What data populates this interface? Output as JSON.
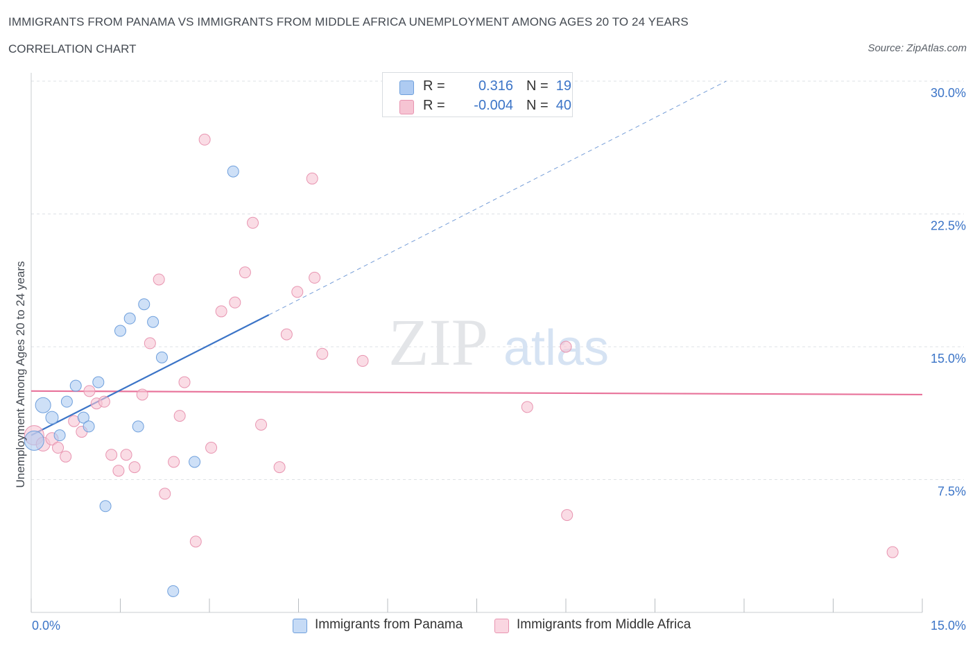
{
  "title": "IMMIGRANTS FROM PANAMA VS IMMIGRANTS FROM MIDDLE AFRICA UNEMPLOYMENT AMONG AGES 20 TO 24 YEARS",
  "subtitle": "CORRELATION CHART",
  "source": "Source: ZipAtlas.com",
  "watermark": {
    "zip": "ZIP",
    "atlas": "atlas"
  },
  "legend": {
    "r_label": "R =",
    "n_label": "N =",
    "rows": [
      {
        "r": "0.316",
        "n": "19"
      },
      {
        "r": "-0.004",
        "n": "40"
      }
    ]
  },
  "colors": {
    "panama_fill": "#aecbf2",
    "panama_stroke": "#6e9fdc",
    "panama_line": "#3b74c7",
    "africa_fill": "#f6c4d3",
    "africa_stroke": "#e894b0",
    "africa_line": "#e8729a",
    "axis_label": "#3b74c7",
    "grid": "#dde1e5"
  },
  "chart_data": {
    "type": "scatter",
    "title": "IMMIGRANTS FROM PANAMA VS IMMIGRANTS FROM MIDDLE AFRICA UNEMPLOYMENT AMONG AGES 20 TO 24 YEARS",
    "xlabel": "",
    "ylabel": "Unemployment Among Ages 20 to 24 years",
    "xlim": [
      0,
      15
    ],
    "ylim": [
      0,
      30
    ],
    "x_tick_labels": [
      "0.0%",
      "15.0%"
    ],
    "y_ticks": [
      7.5,
      15.0,
      22.5,
      30.0
    ],
    "y_tick_labels": [
      "7.5%",
      "15.0%",
      "22.5%",
      "30.0%"
    ],
    "grid": true,
    "legend_position": "bottom",
    "series": [
      {
        "name": "Immigrants from Panama",
        "R": 0.316,
        "N": 19,
        "trend": {
          "x0": 0.0,
          "y0": 10.0,
          "x1": 4.0,
          "y1": 16.8,
          "dashed_to_x": 11.7,
          "dashed_to_y": 30.0
        },
        "points": [
          {
            "x": 0.05,
            "y": 9.7,
            "s": 14
          },
          {
            "x": 0.2,
            "y": 11.7,
            "s": 11
          },
          {
            "x": 0.35,
            "y": 11.0,
            "s": 9
          },
          {
            "x": 0.48,
            "y": 10.0,
            "s": 8
          },
          {
            "x": 0.6,
            "y": 11.9,
            "s": 8
          },
          {
            "x": 0.75,
            "y": 12.8,
            "s": 8
          },
          {
            "x": 0.88,
            "y": 11.0,
            "s": 8
          },
          {
            "x": 0.97,
            "y": 10.5,
            "s": 8
          },
          {
            "x": 1.13,
            "y": 13.0,
            "s": 8
          },
          {
            "x": 1.25,
            "y": 6.0,
            "s": 8
          },
          {
            "x": 1.5,
            "y": 15.9,
            "s": 8
          },
          {
            "x": 1.66,
            "y": 16.6,
            "s": 8
          },
          {
            "x": 1.8,
            "y": 10.5,
            "s": 8
          },
          {
            "x": 1.9,
            "y": 17.4,
            "s": 8
          },
          {
            "x": 2.05,
            "y": 16.4,
            "s": 8
          },
          {
            "x": 2.2,
            "y": 14.4,
            "s": 8
          },
          {
            "x": 2.39,
            "y": 1.2,
            "s": 8
          },
          {
            "x": 2.75,
            "y": 8.5,
            "s": 8
          },
          {
            "x": 3.4,
            "y": 24.9,
            "s": 8
          }
        ]
      },
      {
        "name": "Immigrants from Middle Africa",
        "R": -0.004,
        "N": 40,
        "trend": {
          "x0": 0.0,
          "y0": 12.5,
          "x1": 15.0,
          "y1": 12.3
        },
        "points": [
          {
            "x": 0.05,
            "y": 10.0,
            "s": 14
          },
          {
            "x": 0.2,
            "y": 9.5,
            "s": 10
          },
          {
            "x": 0.35,
            "y": 9.8,
            "s": 9
          },
          {
            "x": 0.45,
            "y": 9.3,
            "s": 8
          },
          {
            "x": 0.58,
            "y": 8.8,
            "s": 8
          },
          {
            "x": 0.72,
            "y": 10.8,
            "s": 8
          },
          {
            "x": 0.85,
            "y": 10.2,
            "s": 8
          },
          {
            "x": 0.98,
            "y": 12.5,
            "s": 8
          },
          {
            "x": 1.1,
            "y": 11.8,
            "s": 8
          },
          {
            "x": 1.23,
            "y": 11.9,
            "s": 8
          },
          {
            "x": 1.35,
            "y": 8.9,
            "s": 8
          },
          {
            "x": 1.47,
            "y": 8.0,
            "s": 8
          },
          {
            "x": 1.6,
            "y": 8.9,
            "s": 8
          },
          {
            "x": 1.74,
            "y": 8.2,
            "s": 8
          },
          {
            "x": 1.87,
            "y": 12.3,
            "s": 8
          },
          {
            "x": 2.0,
            "y": 15.2,
            "s": 8
          },
          {
            "x": 2.15,
            "y": 18.8,
            "s": 8
          },
          {
            "x": 2.25,
            "y": 6.7,
            "s": 8
          },
          {
            "x": 2.4,
            "y": 8.5,
            "s": 8
          },
          {
            "x": 2.5,
            "y": 11.1,
            "s": 8
          },
          {
            "x": 2.58,
            "y": 13.0,
            "s": 8
          },
          {
            "x": 2.77,
            "y": 4.0,
            "s": 8
          },
          {
            "x": 2.92,
            "y": 26.7,
            "s": 8
          },
          {
            "x": 3.03,
            "y": 9.3,
            "s": 8
          },
          {
            "x": 3.2,
            "y": 17.0,
            "s": 8
          },
          {
            "x": 3.43,
            "y": 17.5,
            "s": 8
          },
          {
            "x": 3.6,
            "y": 19.2,
            "s": 8
          },
          {
            "x": 3.73,
            "y": 22.0,
            "s": 8
          },
          {
            "x": 3.87,
            "y": 10.6,
            "s": 8
          },
          {
            "x": 4.18,
            "y": 8.2,
            "s": 8
          },
          {
            "x": 4.3,
            "y": 15.7,
            "s": 8
          },
          {
            "x": 4.48,
            "y": 18.1,
            "s": 8
          },
          {
            "x": 4.73,
            "y": 24.5,
            "s": 8
          },
          {
            "x": 4.77,
            "y": 18.9,
            "s": 8
          },
          {
            "x": 4.9,
            "y": 14.6,
            "s": 8
          },
          {
            "x": 5.58,
            "y": 14.2,
            "s": 8
          },
          {
            "x": 8.35,
            "y": 11.6,
            "s": 8
          },
          {
            "x": 9.0,
            "y": 15.0,
            "s": 8
          },
          {
            "x": 9.02,
            "y": 5.5,
            "s": 8
          },
          {
            "x": 14.5,
            "y": 3.4,
            "s": 8
          }
        ]
      }
    ]
  }
}
